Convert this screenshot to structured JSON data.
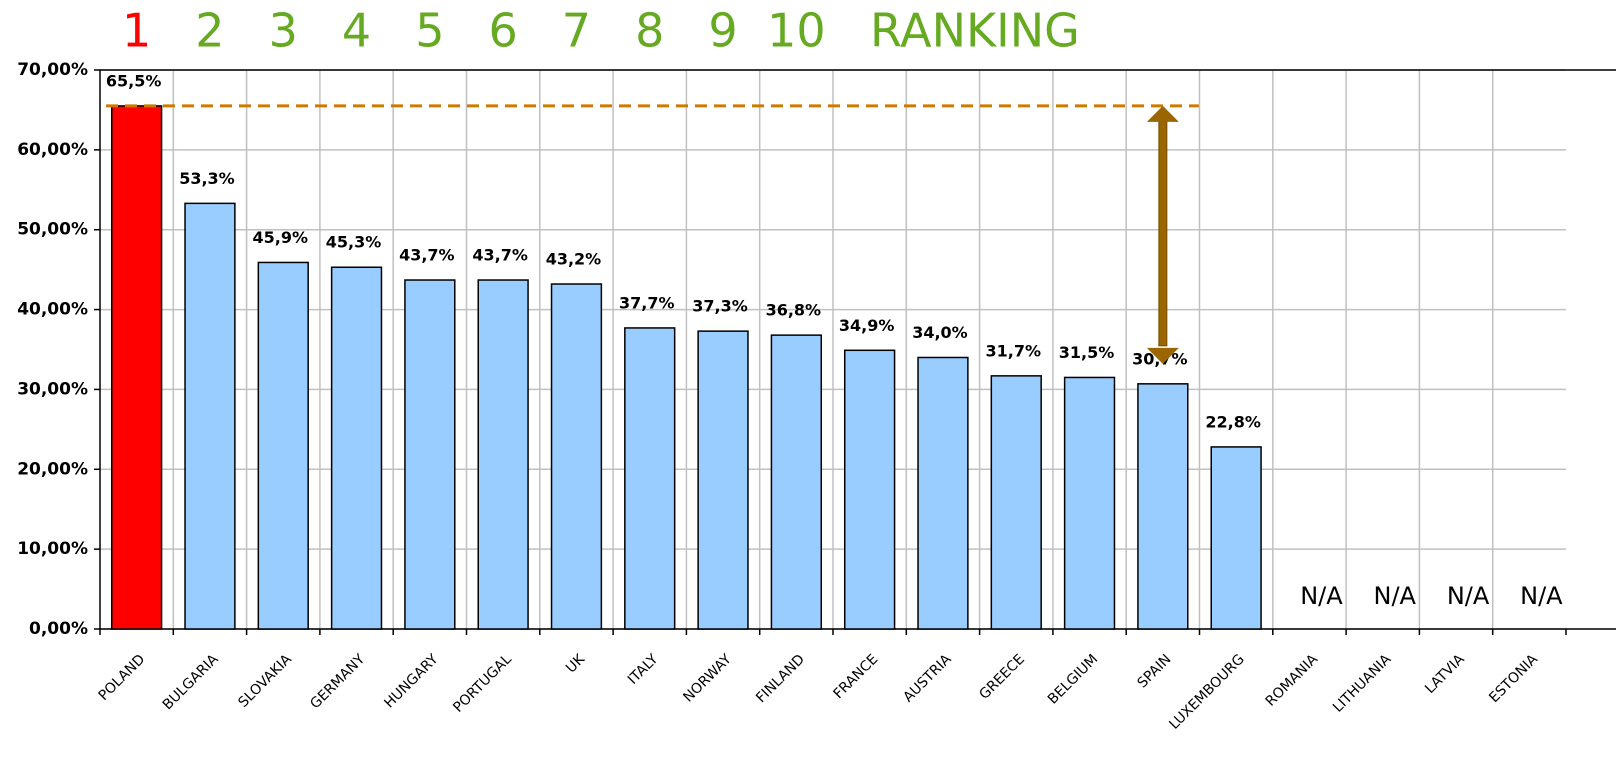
{
  "chart_data": {
    "type": "bar",
    "categories": [
      "POLAND",
      "BULGARIA",
      "SLOVAKIA",
      "GERMANY",
      "HUNGARY",
      "PORTUGAL",
      "UK",
      "ITALY",
      "NORWAY",
      "FINLAND",
      "FRANCE",
      "AUSTRIA",
      "GREECE",
      "BELGIUM",
      "SPAIN",
      "LUXEMBOURG",
      "ROMANIA",
      "LITHUANIA",
      "LATVIA",
      "ESTONIA"
    ],
    "values": [
      65.5,
      53.3,
      45.9,
      45.3,
      43.7,
      43.7,
      43.2,
      37.7,
      37.3,
      36.8,
      34.9,
      34.0,
      31.7,
      31.5,
      30.7,
      22.8,
      null,
      null,
      null,
      null
    ],
    "value_labels": [
      "65,5%",
      "53,3%",
      "45,9%",
      "45,3%",
      "43,7%",
      "43,7%",
      "43,2%",
      "37,7%",
      "37,3%",
      "36,8%",
      "34,9%",
      "34,0%",
      "31,7%",
      "31,5%",
      "30,7%",
      "22,8%",
      "N/A",
      "N/A",
      "N/A",
      "N/A"
    ],
    "color": "#99ccff",
    "highlight_color": "#ff0000",
    "ylim": [
      0,
      70
    ],
    "yticks": [
      {
        "value": 0,
        "label": "0,00%"
      },
      {
        "value": 10,
        "label": "10,00%"
      },
      {
        "value": 20,
        "label": "20,00%"
      },
      {
        "value": 30,
        "label": "30,00%"
      },
      {
        "value": 40,
        "label": "40,00%"
      },
      {
        "value": 50,
        "label": "50,00%"
      },
      {
        "value": 60,
        "label": "60,00%"
      },
      {
        "value": 70,
        "label": "70,00%"
      }
    ],
    "grid": true,
    "ranking": {
      "numbers": [
        "1",
        "2",
        "3",
        "4",
        "5",
        "6",
        "7",
        "8",
        "9",
        "10"
      ],
      "label": "RANKING",
      "color": "#66aa22",
      "first_color": "#ff0000"
    },
    "reference_line_color": "#cc7a00",
    "arrow": {
      "category": "SPAIN",
      "color": "#996600"
    }
  }
}
